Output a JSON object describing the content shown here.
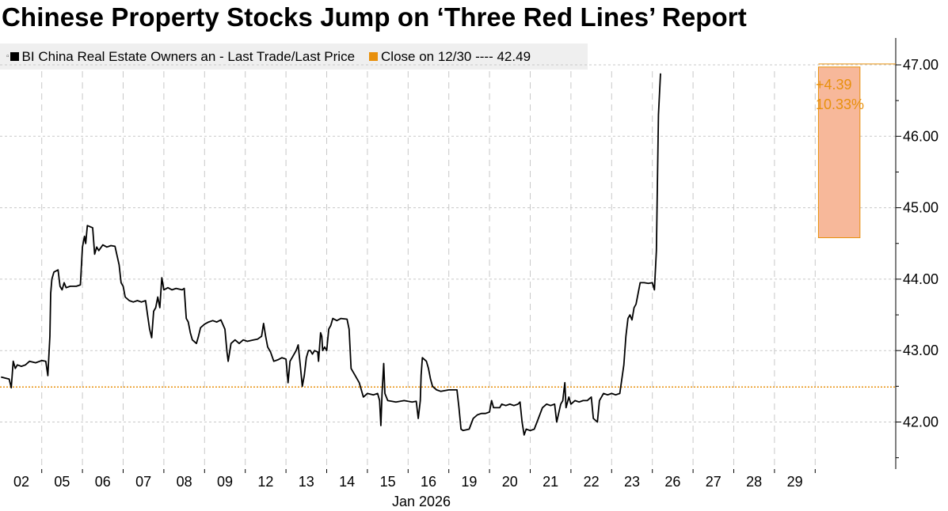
{
  "chart_data": {
    "type": "line",
    "title": "Chinese Property Stocks Jump on ‘Three Red Lines’ Report",
    "legend": {
      "series_marker": "▫",
      "series_label": "BI China Real Estate Owners an - Last Trade/Last Price",
      "reference_label": "Close on 12/30 ---- 42.49"
    },
    "colors": {
      "line": "#000000",
      "reference": "#e8900c",
      "highlight": "#f7b89a",
      "highlight_border": "#e8900c",
      "grid": "#c8c8c8"
    },
    "ylim": [
      41.4,
      47.25
    ],
    "y_ticks": [
      42.0,
      43.0,
      44.0,
      45.0,
      46.0,
      47.0
    ],
    "y_tick_labels": [
      "42.00",
      "43.00",
      "44.00",
      "45.00",
      "46.00",
      "47.00"
    ],
    "x_tick_labels": [
      "02",
      "05",
      "06",
      "07",
      "08",
      "09",
      "12",
      "13",
      "14",
      "15",
      "16",
      "19",
      "20",
      "21",
      "22",
      "23",
      "26",
      "27",
      "28",
      "29"
    ],
    "x_axis_sublabel": "Jan 2026",
    "reference_value": 42.49,
    "highlight": {
      "from_t": 19.58,
      "to_t": 20.6,
      "y_low": 44.58,
      "y_high": 46.97
    },
    "annotation": {
      "change": "+4.39",
      "percent": "10.33%"
    },
    "series": [
      {
        "name": "BI China Real Estate Owners an",
        "points": [
          [
            -0.5,
            42.63
          ],
          [
            -0.3,
            42.6
          ],
          [
            -0.25,
            42.48
          ],
          [
            -0.2,
            42.85
          ],
          [
            -0.15,
            42.75
          ],
          [
            -0.1,
            42.8
          ],
          [
            0.0,
            42.78
          ],
          [
            0.1,
            42.8
          ],
          [
            0.2,
            42.85
          ],
          [
            0.35,
            42.83
          ],
          [
            0.5,
            42.86
          ],
          [
            0.6,
            42.85
          ],
          [
            0.65,
            42.65
          ],
          [
            0.7,
            43.2
          ],
          [
            0.72,
            43.8
          ],
          [
            0.75,
            44.0
          ],
          [
            0.8,
            44.1
          ],
          [
            0.9,
            44.13
          ],
          [
            0.95,
            43.9
          ],
          [
            1.0,
            43.85
          ],
          [
            1.05,
            43.95
          ],
          [
            1.1,
            43.88
          ],
          [
            1.2,
            43.9
          ],
          [
            1.35,
            43.9
          ],
          [
            1.45,
            43.92
          ],
          [
            1.5,
            44.45
          ],
          [
            1.55,
            44.6
          ],
          [
            1.58,
            44.5
          ],
          [
            1.62,
            44.75
          ],
          [
            1.75,
            44.72
          ],
          [
            1.8,
            44.35
          ],
          [
            1.85,
            44.45
          ],
          [
            1.9,
            44.4
          ],
          [
            2.0,
            44.48
          ],
          [
            2.1,
            44.45
          ],
          [
            2.2,
            44.47
          ],
          [
            2.3,
            44.46
          ],
          [
            2.4,
            44.2
          ],
          [
            2.45,
            43.95
          ],
          [
            2.5,
            43.9
          ],
          [
            2.55,
            43.75
          ],
          [
            2.65,
            43.7
          ],
          [
            2.75,
            43.68
          ],
          [
            2.85,
            43.7
          ],
          [
            2.95,
            43.68
          ],
          [
            3.05,
            43.7
          ],
          [
            3.1,
            43.5
          ],
          [
            3.15,
            43.3
          ],
          [
            3.2,
            43.18
          ],
          [
            3.25,
            43.55
          ],
          [
            3.3,
            43.6
          ],
          [
            3.35,
            43.75
          ],
          [
            3.4,
            43.6
          ],
          [
            3.45,
            44.02
          ],
          [
            3.5,
            43.85
          ],
          [
            3.6,
            43.88
          ],
          [
            3.7,
            43.85
          ],
          [
            3.8,
            43.87
          ],
          [
            3.95,
            43.85
          ],
          [
            4.0,
            43.87
          ],
          [
            4.05,
            43.45
          ],
          [
            4.1,
            43.4
          ],
          [
            4.15,
            43.25
          ],
          [
            4.2,
            43.15
          ],
          [
            4.3,
            43.1
          ],
          [
            4.35,
            43.2
          ],
          [
            4.4,
            43.32
          ],
          [
            4.5,
            43.37
          ],
          [
            4.6,
            43.4
          ],
          [
            4.7,
            43.42
          ],
          [
            4.8,
            43.4
          ],
          [
            4.9,
            43.43
          ],
          [
            5.0,
            43.3
          ],
          [
            5.05,
            42.98
          ],
          [
            5.08,
            42.85
          ],
          [
            5.15,
            43.1
          ],
          [
            5.25,
            43.15
          ],
          [
            5.35,
            43.1
          ],
          [
            5.45,
            43.15
          ],
          [
            5.55,
            43.13
          ],
          [
            5.7,
            43.15
          ],
          [
            5.8,
            43.16
          ],
          [
            5.9,
            43.2
          ],
          [
            5.95,
            43.38
          ],
          [
            6.0,
            43.2
          ],
          [
            6.05,
            43.05
          ],
          [
            6.12,
            42.98
          ],
          [
            6.2,
            42.85
          ],
          [
            6.3,
            42.87
          ],
          [
            6.4,
            42.9
          ],
          [
            6.5,
            42.88
          ],
          [
            6.55,
            42.55
          ],
          [
            6.6,
            42.85
          ],
          [
            6.65,
            42.9
          ],
          [
            6.75,
            43.0
          ],
          [
            6.8,
            43.08
          ],
          [
            6.85,
            42.8
          ],
          [
            6.9,
            42.5
          ],
          [
            6.95,
            42.65
          ],
          [
            7.0,
            42.9
          ],
          [
            7.05,
            43.0
          ],
          [
            7.1,
            43.0
          ],
          [
            7.15,
            42.95
          ],
          [
            7.2,
            43.0
          ],
          [
            7.28,
            42.98
          ],
          [
            7.3,
            42.85
          ],
          [
            7.35,
            43.25
          ],
          [
            7.38,
            43.2
          ],
          [
            7.4,
            43.0
          ],
          [
            7.45,
            43.05
          ],
          [
            7.5,
            43.0
          ],
          [
            7.55,
            43.3
          ],
          [
            7.6,
            43.35
          ],
          [
            7.65,
            43.45
          ],
          [
            7.75,
            43.42
          ],
          [
            7.85,
            43.45
          ],
          [
            8.0,
            43.44
          ],
          [
            8.05,
            43.3
          ],
          [
            8.1,
            42.75
          ],
          [
            8.2,
            42.65
          ],
          [
            8.3,
            42.55
          ],
          [
            8.4,
            42.35
          ],
          [
            8.5,
            42.4
          ],
          [
            8.65,
            42.38
          ],
          [
            8.75,
            42.4
          ],
          [
            8.8,
            42.3
          ],
          [
            8.83,
            41.95
          ],
          [
            8.86,
            42.4
          ],
          [
            8.9,
            42.82
          ],
          [
            8.93,
            42.4
          ],
          [
            9.0,
            42.3
          ],
          [
            9.2,
            42.28
          ],
          [
            9.4,
            42.3
          ],
          [
            9.6,
            42.28
          ],
          [
            9.7,
            42.29
          ],
          [
            9.75,
            42.05
          ],
          [
            9.8,
            42.3
          ],
          [
            9.82,
            42.65
          ],
          [
            9.85,
            42.9
          ],
          [
            9.95,
            42.85
          ],
          [
            10.0,
            42.75
          ],
          [
            10.05,
            42.6
          ],
          [
            10.1,
            42.5
          ],
          [
            10.2,
            42.45
          ],
          [
            10.3,
            42.43
          ],
          [
            10.5,
            42.45
          ],
          [
            10.7,
            42.45
          ],
          [
            10.75,
            42.2
          ],
          [
            10.8,
            41.9
          ],
          [
            10.85,
            41.88
          ],
          [
            11.0,
            41.9
          ],
          [
            11.1,
            42.05
          ],
          [
            11.2,
            42.1
          ],
          [
            11.3,
            42.12
          ],
          [
            11.4,
            42.12
          ],
          [
            11.5,
            42.14
          ],
          [
            11.55,
            42.3
          ],
          [
            11.6,
            42.2
          ],
          [
            11.7,
            42.2
          ],
          [
            11.75,
            42.2
          ],
          [
            11.8,
            42.25
          ],
          [
            11.9,
            42.23
          ],
          [
            12.0,
            42.25
          ],
          [
            12.1,
            42.23
          ],
          [
            12.2,
            42.25
          ],
          [
            12.25,
            42.28
          ],
          [
            12.3,
            42.0
          ],
          [
            12.35,
            41.82
          ],
          [
            12.4,
            41.9
          ],
          [
            12.5,
            41.88
          ],
          [
            12.6,
            41.9
          ],
          [
            12.7,
            42.05
          ],
          [
            12.8,
            42.2
          ],
          [
            12.9,
            42.25
          ],
          [
            13.0,
            42.23
          ],
          [
            13.1,
            42.25
          ],
          [
            13.15,
            42.0
          ],
          [
            13.25,
            42.25
          ],
          [
            13.3,
            42.3
          ],
          [
            13.35,
            42.55
          ],
          [
            13.38,
            42.2
          ],
          [
            13.45,
            42.35
          ],
          [
            13.5,
            42.25
          ],
          [
            13.6,
            42.3
          ],
          [
            13.7,
            42.28
          ],
          [
            13.8,
            42.3
          ],
          [
            13.9,
            42.3
          ],
          [
            14.0,
            42.35
          ],
          [
            14.05,
            42.05
          ],
          [
            14.15,
            42.0
          ],
          [
            14.2,
            42.3
          ],
          [
            14.3,
            42.4
          ],
          [
            14.4,
            42.38
          ],
          [
            14.5,
            42.4
          ],
          [
            14.6,
            42.38
          ],
          [
            14.7,
            42.4
          ],
          [
            14.8,
            42.8
          ],
          [
            14.85,
            43.2
          ],
          [
            14.9,
            43.45
          ],
          [
            14.95,
            43.5
          ],
          [
            15.0,
            43.43
          ],
          [
            15.05,
            43.6
          ],
          [
            15.1,
            43.65
          ],
          [
            15.2,
            43.95
          ],
          [
            15.3,
            43.95
          ],
          [
            15.4,
            43.94
          ],
          [
            15.5,
            43.95
          ],
          [
            15.55,
            43.85
          ],
          [
            15.6,
            44.4
          ],
          [
            15.65,
            46.3
          ],
          [
            15.7,
            46.88
          ]
        ]
      }
    ]
  }
}
